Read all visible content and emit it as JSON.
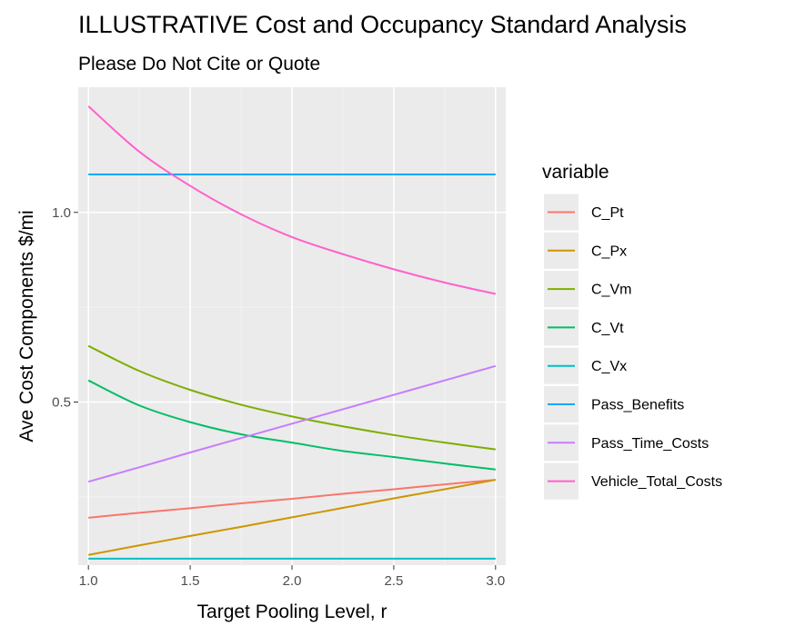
{
  "chart_data": {
    "type": "line",
    "title": "ILLUSTRATIVE Cost and Occupancy Standard Analysis",
    "subtitle": "Please Do Not Cite or Quote",
    "xlabel": "Target Pooling Level, r",
    "ylabel": "Ave Cost Components $/mi",
    "xlim": [
      0.95,
      3.05
    ],
    "ylim": [
      0.07,
      1.33
    ],
    "xticks": [
      1.0,
      1.5,
      2.0,
      2.5,
      3.0
    ],
    "xtick_labels": [
      "1.0",
      "1.5",
      "2.0",
      "2.5",
      "3.0"
    ],
    "yticks": [
      0.5,
      1.0
    ],
    "ytick_labels": [
      "0.5",
      "1.0"
    ],
    "grid": true,
    "panel_background": "#ebebeb",
    "legend_title": "variable",
    "legend_position": "right",
    "x": [
      1.0,
      1.25,
      1.5,
      1.75,
      2.0,
      2.25,
      2.5,
      2.75,
      3.0
    ],
    "series": [
      {
        "name": "C_Pt",
        "color": "#F8766D",
        "values": [
          0.195,
          0.208,
          0.22,
          0.233,
          0.245,
          0.258,
          0.27,
          0.283,
          0.295
        ]
      },
      {
        "name": "C_Px",
        "color": "#CD9600",
        "values": [
          0.097,
          0.122,
          0.147,
          0.171,
          0.196,
          0.221,
          0.246,
          0.27,
          0.295
        ]
      },
      {
        "name": "C_Vm",
        "color": "#7CAE00",
        "values": [
          0.648,
          0.582,
          0.532,
          0.493,
          0.462,
          0.436,
          0.413,
          0.393,
          0.375
        ]
      },
      {
        "name": "C_Vt",
        "color": "#00BE67",
        "values": [
          0.557,
          0.491,
          0.447,
          0.415,
          0.393,
          0.371,
          0.355,
          0.338,
          0.322
        ]
      },
      {
        "name": "C_Vx",
        "color": "#00BFC4",
        "values": [
          0.087,
          0.087,
          0.087,
          0.087,
          0.087,
          0.087,
          0.087,
          0.087,
          0.087
        ]
      },
      {
        "name": "Pass_Benefits",
        "color": "#00A9FF",
        "values": [
          1.1,
          1.1,
          1.1,
          1.1,
          1.1,
          1.1,
          1.1,
          1.1,
          1.1
        ]
      },
      {
        "name": "Pass_Time_Costs",
        "color": "#C77CFF",
        "values": [
          0.29,
          0.328,
          0.367,
          0.405,
          0.443,
          0.481,
          0.519,
          0.557,
          0.595
        ]
      },
      {
        "name": "Vehicle_Total_Costs",
        "color": "#FF61CC",
        "values": [
          1.28,
          1.16,
          1.07,
          0.995,
          0.935,
          0.89,
          0.85,
          0.815,
          0.785
        ]
      }
    ]
  }
}
